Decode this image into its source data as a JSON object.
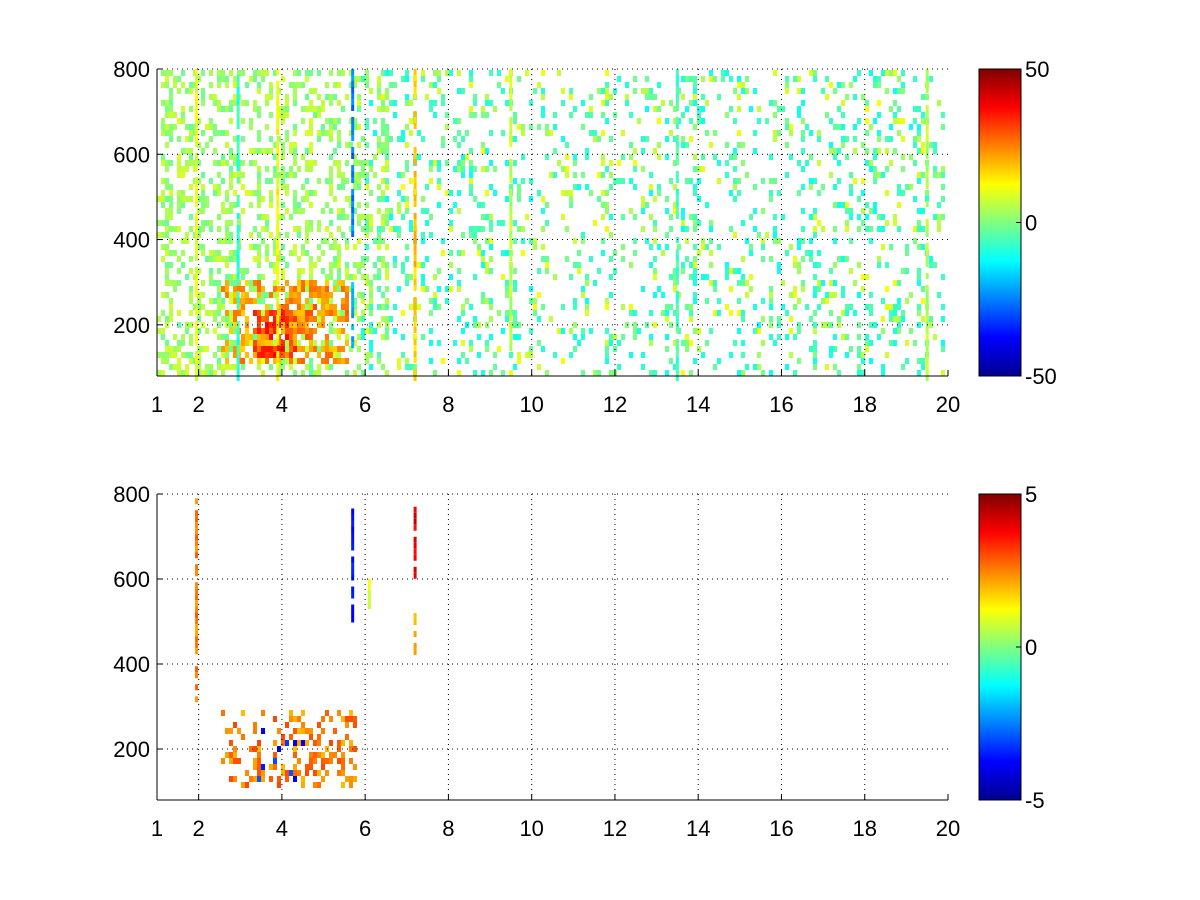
{
  "chart_data": [
    {
      "type": "heatmap",
      "title": "",
      "xlabel": "",
      "ylabel": "",
      "xlim": [
        1,
        20
      ],
      "ylim": [
        80,
        800
      ],
      "xticks": [
        1,
        2,
        4,
        6,
        8,
        10,
        12,
        14,
        16,
        18,
        20
      ],
      "yticks": [
        200,
        400,
        600,
        800
      ],
      "grid": true,
      "colormap": "jet",
      "colorbar": {
        "min": -50,
        "max": 50,
        "ticks": [
          -50,
          0,
          50
        ]
      },
      "features": [
        {
          "x": [
            1.0,
            6.5
          ],
          "y": [
            80,
            800
          ],
          "value": 3,
          "density": 0.55,
          "note": ""
        },
        {
          "x": [
            2.6,
            5.6
          ],
          "y": [
            110,
            300
          ],
          "value": 22,
          "density": 0.75
        },
        {
          "x": [
            3.4,
            4.3
          ],
          "y": [
            130,
            230
          ],
          "value": 32,
          "density": 0.8
        },
        {
          "x": [
            4.6,
            5.0
          ],
          "y": [
            170,
            270
          ],
          "value": 24,
          "density": 0.6
        },
        {
          "x": [
            6.0,
            20.0
          ],
          "y": [
            80,
            800
          ],
          "value": -6,
          "density": 0.22
        },
        {
          "x": [
            6.0,
            20.0
          ],
          "y": [
            80,
            800
          ],
          "value": 6,
          "density": 0.1
        }
      ],
      "stripes": [
        {
          "x": 1.95,
          "y": [
            80,
            800
          ],
          "value": 10
        },
        {
          "x": 2.95,
          "y": [
            80,
            800
          ],
          "value": -8
        },
        {
          "x": 3.9,
          "y": [
            80,
            800
          ],
          "value": 12
        },
        {
          "x": 5.7,
          "y": [
            420,
            800
          ],
          "value": -25
        },
        {
          "x": 5.7,
          "y": [
            150,
            300
          ],
          "value": -20
        },
        {
          "x": 7.2,
          "y": [
            80,
            800
          ],
          "value": 18
        },
        {
          "x": 9.5,
          "y": [
            150,
            800
          ],
          "value": 6
        },
        {
          "x": 13.5,
          "y": [
            80,
            800
          ],
          "value": -6
        },
        {
          "x": 19.5,
          "y": [
            80,
            800
          ],
          "value": 5
        }
      ]
    },
    {
      "type": "heatmap",
      "title": "",
      "xlabel": "",
      "ylabel": "",
      "xlim": [
        1,
        20
      ],
      "ylim": [
        80,
        800
      ],
      "xticks": [
        1,
        2,
        4,
        6,
        8,
        10,
        12,
        14,
        16,
        18,
        20
      ],
      "yticks": [
        200,
        400,
        600,
        800
      ],
      "grid": true,
      "colormap": "jet",
      "colorbar": {
        "min": -5,
        "max": 5,
        "ticks": [
          -5,
          0,
          5
        ]
      },
      "features": [
        {
          "x": [
            2.6,
            5.8
          ],
          "y": [
            110,
            280
          ],
          "value": 2.5,
          "density": 0.45
        },
        {
          "x": [
            3.5,
            4.6
          ],
          "y": [
            130,
            240
          ],
          "value": -3.5,
          "density": 0.25
        },
        {
          "x": [
            4.6,
            5.3
          ],
          "y": [
            140,
            200
          ],
          "value": 2.5,
          "density": 0.4
        }
      ],
      "stripes": [
        {
          "x": 1.95,
          "y": [
            320,
            790
          ],
          "value": 2.5
        },
        {
          "x": 5.7,
          "y": [
            500,
            780
          ],
          "value": -3.5
        },
        {
          "x": 7.2,
          "y": [
            600,
            770
          ],
          "value": 4
        },
        {
          "x": 7.2,
          "y": [
            430,
            520
          ],
          "value": 2
        },
        {
          "x": 6.1,
          "y": [
            540,
            600
          ],
          "value": 1
        }
      ]
    }
  ]
}
